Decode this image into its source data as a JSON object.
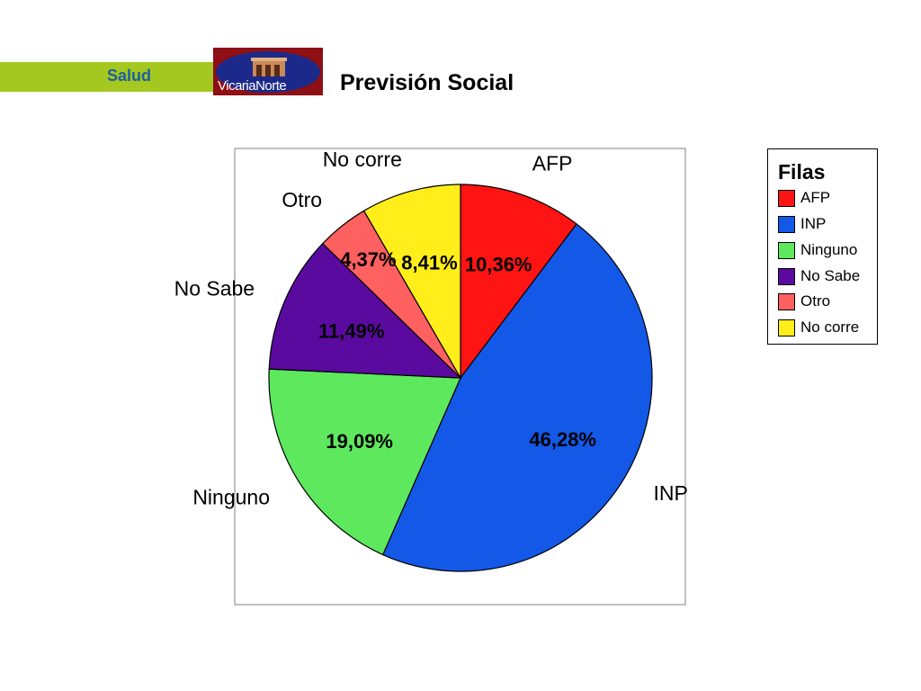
{
  "header": {
    "section_label": "Salud",
    "logo_text": "VicariaNorte",
    "title": "Previsión Social"
  },
  "colors": {
    "section_bar": "#a4c81f",
    "section_text": "#1e5fa0",
    "logo_bg": "#8e0f14"
  },
  "legend": {
    "title": "Filas",
    "items": [
      {
        "label": "AFP",
        "color": "#ff1414"
      },
      {
        "label": "INP",
        "color": "#1458e8"
      },
      {
        "label": "Ninguno",
        "color": "#5ee85e"
      },
      {
        "label": "No Sabe",
        "color": "#5a0a9e"
      },
      {
        "label": "Otro",
        "color": "#ff6060"
      },
      {
        "label": "No corre",
        "color": "#ffee1a"
      }
    ]
  },
  "chart_data": {
    "type": "pie",
    "title": "Previsión Social",
    "legend_title": "Filas",
    "legend_position": "right",
    "slices": [
      {
        "label": "AFP",
        "value": 10.36,
        "value_label": "10,36%",
        "color": "#ff1414"
      },
      {
        "label": "INP",
        "value": 46.28,
        "value_label": "46,28%",
        "color": "#1458e8"
      },
      {
        "label": "Ninguno",
        "value": 19.09,
        "value_label": "19,09%",
        "color": "#5ee85e"
      },
      {
        "label": "No Sabe",
        "value": 11.49,
        "value_label": "11,49%",
        "color": "#5a0a9e"
      },
      {
        "label": "Otro",
        "value": 4.37,
        "value_label": "4,37%",
        "color": "#ff6060"
      },
      {
        "label": "No corre",
        "value": 8.41,
        "value_label": "8,41%",
        "color": "#ffee1a"
      }
    ]
  }
}
